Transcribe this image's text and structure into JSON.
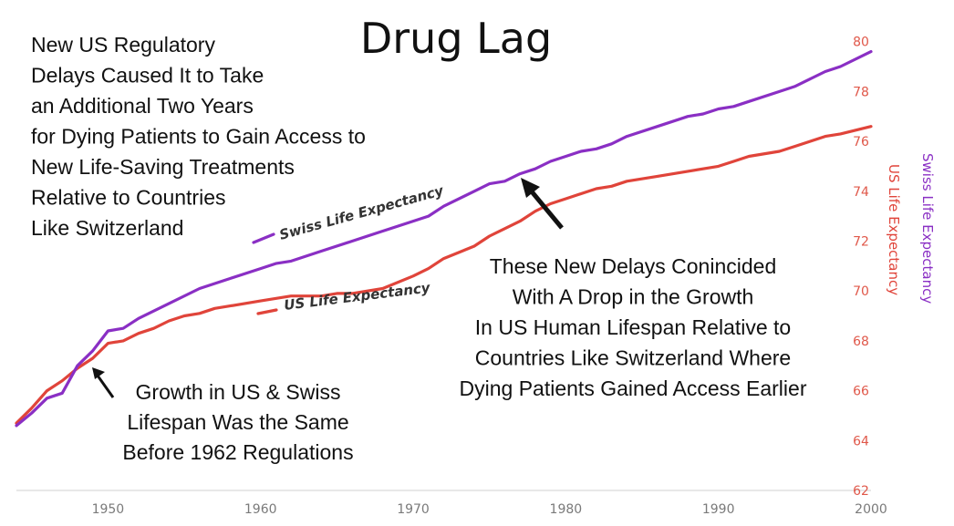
{
  "chart_data": {
    "type": "line",
    "title": "Drug Lag",
    "intro_lines": [
      "New US Regulatory",
      "Delays Caused It to Take",
      "an Additional Two Years",
      "for Dying Patients to Gain Access to",
      "New Life-Saving Treatments",
      "Relative to Countries",
      "Like Switzerland"
    ],
    "annotation_left": [
      "Growth in US & Swiss",
      "Lifespan Was the Same",
      "Before 1962 Regulations"
    ],
    "annotation_right": [
      "These New Delays Conincided",
      "With A Drop in the Growth",
      "In US Human Lifespan Relative to",
      "Countries Like Switzerland Where",
      "Dying Patients Gained Access Earlier"
    ],
    "xlim": [
      1944,
      2000
    ],
    "ylim": [
      62,
      80.5
    ],
    "x_ticks": [
      "1950",
      "1960",
      "1970",
      "1980",
      "1990",
      "2000"
    ],
    "y_ticks": [
      "62",
      "64",
      "66",
      "68",
      "70",
      "72",
      "74",
      "76",
      "78",
      "80"
    ],
    "y_axis_labels": [
      "US Life Expectancy",
      "Swiss Life Expectancy"
    ],
    "colors": {
      "swiss": "#8a2fc4",
      "us": "#e0443a",
      "tick_y": "#e0584a",
      "tick_x": "#7a7a7a"
    },
    "series": [
      {
        "name": "Swiss Life Expectancy",
        "label": "Swiss Life Expectancy",
        "x": [
          1944,
          1945,
          1946,
          1947,
          1948,
          1949,
          1950,
          1951,
          1952,
          1954,
          1956,
          1958,
          1960,
          1961,
          1962,
          1964,
          1966,
          1968,
          1970,
          1971,
          1972,
          1974,
          1975,
          1976,
          1977,
          1978,
          1979,
          1980,
          1981,
          1982,
          1983,
          1984,
          1986,
          1988,
          1989,
          1990,
          1991,
          1992,
          1994,
          1995,
          1996,
          1997,
          1998,
          2000
        ],
        "y": [
          64.6,
          65.1,
          65.7,
          65.9,
          67.0,
          67.6,
          68.4,
          68.5,
          68.9,
          69.5,
          70.1,
          70.5,
          70.9,
          71.1,
          71.2,
          71.6,
          72.0,
          72.4,
          72.8,
          73.0,
          73.4,
          74.0,
          74.3,
          74.4,
          74.7,
          74.9,
          75.2,
          75.4,
          75.6,
          75.7,
          75.9,
          76.2,
          76.6,
          77.0,
          77.1,
          77.3,
          77.4,
          77.6,
          78.0,
          78.2,
          78.5,
          78.8,
          79.0,
          79.6
        ]
      },
      {
        "name": "US Life Expectancy",
        "label": "US Life Expectancy",
        "x": [
          1944,
          1945,
          1946,
          1947,
          1948,
          1949,
          1950,
          1951,
          1952,
          1953,
          1954,
          1955,
          1956,
          1957,
          1958,
          1960,
          1962,
          1964,
          1965,
          1966,
          1968,
          1970,
          1971,
          1972,
          1974,
          1975,
          1976,
          1977,
          1978,
          1979,
          1980,
          1982,
          1983,
          1984,
          1986,
          1988,
          1990,
          1991,
          1992,
          1994,
          1995,
          1996,
          1997,
          1998,
          2000
        ],
        "y": [
          64.7,
          65.3,
          66.0,
          66.4,
          66.9,
          67.3,
          67.9,
          68.0,
          68.3,
          68.5,
          68.8,
          69.0,
          69.1,
          69.3,
          69.4,
          69.6,
          69.8,
          69.8,
          69.9,
          69.9,
          70.1,
          70.6,
          70.9,
          71.3,
          71.8,
          72.2,
          72.5,
          72.8,
          73.2,
          73.5,
          73.7,
          74.1,
          74.2,
          74.4,
          74.6,
          74.8,
          75.0,
          75.2,
          75.4,
          75.6,
          75.8,
          76.0,
          76.2,
          76.3,
          76.6
        ]
      }
    ],
    "grid": false
  }
}
